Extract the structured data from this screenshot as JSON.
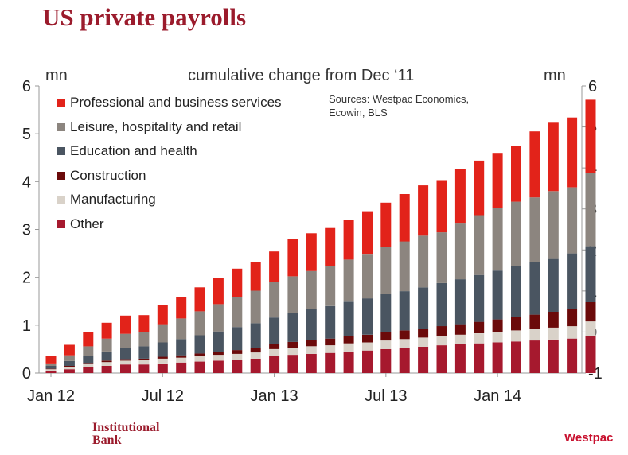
{
  "title": "US private payrolls",
  "footer": {
    "left_line1": "Institutional",
    "left_line2": "Bank",
    "logo": "Westpac"
  },
  "colors": {
    "axis": "#999999",
    "text": "#222222"
  },
  "chart_data": {
    "type": "bar",
    "stacked": true,
    "subtitle": "cumulative change from Dec ‘11",
    "ylabel_left": "mn",
    "ylabel_right": "mn",
    "sources": [
      "Sources: Westpac Economics,",
      "Ecowin, BLS"
    ],
    "ylim_left": [
      0,
      6
    ],
    "ylim_right": [
      -1,
      6
    ],
    "yticks_left": [
      "0",
      "1",
      "2",
      "3",
      "4",
      "5",
      "6"
    ],
    "yticks_right": [
      "-1",
      "0",
      "1",
      "2",
      "3",
      "4",
      "5",
      "6"
    ],
    "x_tick_labels": [
      "Jan 12",
      "Jul 12",
      "Jan 13",
      "Jul 13",
      "Jan 14"
    ],
    "x_tick_positions": [
      0,
      6,
      12,
      18,
      24
    ],
    "legend_position": "top-left",
    "series": [
      {
        "name": "Other",
        "color": "#a6192e",
        "values": [
          0.05,
          0.08,
          0.12,
          0.15,
          0.18,
          0.18,
          0.2,
          0.22,
          0.24,
          0.26,
          0.28,
          0.3,
          0.36,
          0.38,
          0.4,
          0.42,
          0.45,
          0.47,
          0.5,
          0.52,
          0.55,
          0.58,
          0.6,
          0.62,
          0.64,
          0.66,
          0.68,
          0.7,
          0.72,
          0.78
        ]
      },
      {
        "name": "Manufacturing",
        "color": "#d9d2c9",
        "values": [
          0.03,
          0.05,
          0.07,
          0.08,
          0.08,
          0.09,
          0.1,
          0.1,
          0.11,
          0.12,
          0.12,
          0.13,
          0.14,
          0.15,
          0.16,
          0.16,
          0.17,
          0.17,
          0.18,
          0.19,
          0.19,
          0.2,
          0.2,
          0.21,
          0.22,
          0.23,
          0.24,
          0.25,
          0.26,
          0.3
        ]
      },
      {
        "name": "Construction",
        "color": "#6b0a0a",
        "values": [
          0.01,
          0.02,
          0.02,
          0.03,
          0.03,
          0.03,
          0.04,
          0.05,
          0.06,
          0.07,
          0.08,
          0.09,
          0.1,
          0.12,
          0.13,
          0.14,
          0.15,
          0.16,
          0.17,
          0.18,
          0.19,
          0.2,
          0.22,
          0.24,
          0.26,
          0.28,
          0.3,
          0.33,
          0.36,
          0.4
        ]
      },
      {
        "name": "Education and health",
        "color": "#4a5561",
        "values": [
          0.06,
          0.1,
          0.15,
          0.19,
          0.23,
          0.26,
          0.3,
          0.34,
          0.38,
          0.42,
          0.48,
          0.52,
          0.56,
          0.6,
          0.64,
          0.68,
          0.72,
          0.76,
          0.8,
          0.82,
          0.86,
          0.9,
          0.94,
          0.98,
          1.02,
          1.06,
          1.1,
          1.12,
          1.16,
          1.17
        ]
      },
      {
        "name": "Leisure, hospitality and retail",
        "color": "#8c857f",
        "values": [
          0.05,
          0.12,
          0.2,
          0.27,
          0.3,
          0.3,
          0.38,
          0.43,
          0.5,
          0.57,
          0.63,
          0.68,
          0.74,
          0.77,
          0.8,
          0.84,
          0.88,
          0.93,
          0.98,
          1.04,
          1.08,
          1.06,
          1.18,
          1.25,
          1.3,
          1.35,
          1.35,
          1.4,
          1.38,
          1.53
        ]
      },
      {
        "name": "Professional and business services",
        "color": "#e2231a",
        "values": [
          0.15,
          0.22,
          0.3,
          0.33,
          0.38,
          0.35,
          0.4,
          0.45,
          0.5,
          0.55,
          0.59,
          0.6,
          0.64,
          0.78,
          0.79,
          0.79,
          0.83,
          0.89,
          0.93,
          0.99,
          1.05,
          1.09,
          1.12,
          1.14,
          1.16,
          1.16,
          1.38,
          1.43,
          1.46,
          1.53
        ]
      }
    ]
  }
}
